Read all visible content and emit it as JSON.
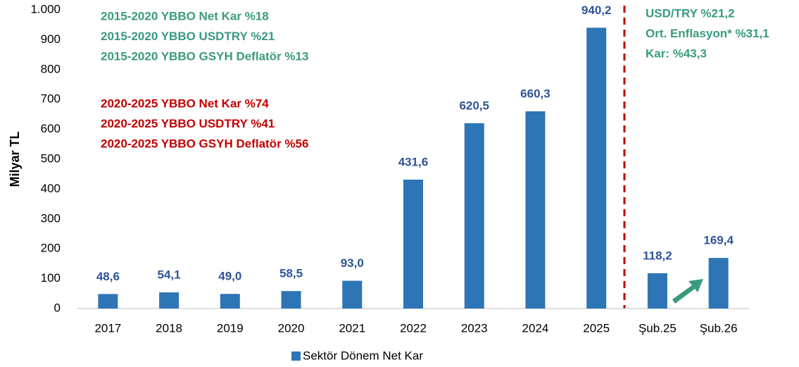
{
  "chart_data": {
    "type": "bar",
    "y_label": "Milyar TL",
    "categories": [
      "2017",
      "2018",
      "2019",
      "2020",
      "2021",
      "2022",
      "2023",
      "2024",
      "2025",
      "Şub.25",
      "Şub.26"
    ],
    "series": [
      {
        "name": "Sektör Dönem Net Kar",
        "color": "#2e75b6",
        "values": [
          48.6,
          54.1,
          49.0,
          58.5,
          93.0,
          431.6,
          620.5,
          660.3,
          940.2,
          118.2,
          169.4
        ],
        "value_labels": [
          "48,6",
          "54,1",
          "49,0",
          "58,5",
          "93,0",
          "431,6",
          "620,5",
          "660,3",
          "940,2",
          "118,2",
          "169,4"
        ]
      }
    ],
    "ylim": [
      0,
      1000
    ],
    "yticks": [
      0,
      100,
      200,
      300,
      400,
      500,
      600,
      700,
      800,
      900,
      {
        "value": 1000,
        "label": "1.000"
      }
    ],
    "grid": false,
    "legend": "bottom",
    "annotations": [
      {
        "color": "#3a9a7f",
        "lines": [
          "2015-2020 YBBO Net Kar %18",
          "2015-2020 YBBO USDTRY %21",
          "2015-2020 YBBO GSYH Deflatör %13"
        ]
      },
      {
        "color": "#c00000",
        "lines": [
          "2020-2025 YBBO Net Kar %74",
          "2020-2025 YBBO USDTRY %41",
          "2020-2025 YBBO GSYH Deflatör %56"
        ]
      },
      {
        "color": "#3a9a7f",
        "lines": [
          "USD/TRY %21,2",
          "Ort. Enflasyon* %31,1",
          "Kar: %43,3"
        ]
      }
    ]
  }
}
